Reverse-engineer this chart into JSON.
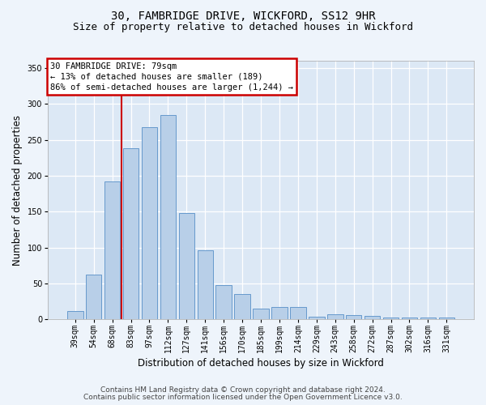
{
  "title1": "30, FAMBRIDGE DRIVE, WICKFORD, SS12 9HR",
  "title2": "Size of property relative to detached houses in Wickford",
  "xlabel": "Distribution of detached houses by size in Wickford",
  "ylabel": "Number of detached properties",
  "categories": [
    "39sqm",
    "54sqm",
    "68sqm",
    "83sqm",
    "97sqm",
    "112sqm",
    "127sqm",
    "141sqm",
    "156sqm",
    "170sqm",
    "185sqm",
    "199sqm",
    "214sqm",
    "229sqm",
    "243sqm",
    "258sqm",
    "272sqm",
    "287sqm",
    "302sqm",
    "316sqm",
    "331sqm"
  ],
  "values": [
    12,
    62,
    192,
    238,
    268,
    285,
    148,
    96,
    48,
    35,
    15,
    17,
    17,
    4,
    7,
    6,
    5,
    2,
    2,
    2,
    2
  ],
  "bar_color": "#b8cfe8",
  "bar_edge_color": "#6699cc",
  "vline_color": "#cc0000",
  "vline_bar_index": 3,
  "annotation_line1": "30 FAMBRIDGE DRIVE: 79sqm",
  "annotation_line2": "← 13% of detached houses are smaller (189)",
  "annotation_line3": "86% of semi-detached houses are larger (1,244) →",
  "annotation_box_facecolor": "#ffffff",
  "annotation_box_edgecolor": "#cc0000",
  "ylim": [
    0,
    360
  ],
  "yticks": [
    0,
    50,
    100,
    150,
    200,
    250,
    300,
    350
  ],
  "plot_bg": "#dce8f5",
  "fig_bg": "#eef4fb",
  "grid_color": "#ffffff",
  "footer1": "Contains HM Land Registry data © Crown copyright and database right 2024.",
  "footer2": "Contains public sector information licensed under the Open Government Licence v3.0.",
  "title1_fontsize": 10,
  "title2_fontsize": 9,
  "xlabel_fontsize": 8.5,
  "ylabel_fontsize": 8.5,
  "annot_fontsize": 7.5,
  "footer_fontsize": 6.5,
  "tick_fontsize": 7
}
